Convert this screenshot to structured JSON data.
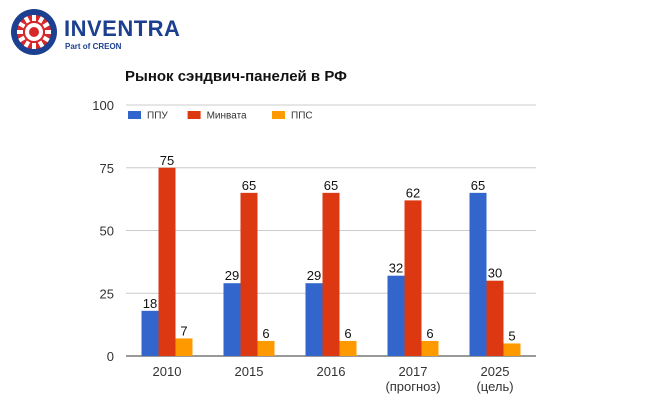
{
  "brand": {
    "name": "INVENTRA",
    "sub_prefix": "Part of ",
    "sub_strong": "CREON",
    "colors": {
      "navy": "#1d3f8f",
      "red": "#d7272b"
    }
  },
  "chart_data": {
    "type": "bar",
    "title": "Рынок сэндвич-панелей в РФ",
    "categories": [
      [
        "2010"
      ],
      [
        "2015"
      ],
      [
        "2016"
      ],
      [
        "2017",
        "(прогноз)"
      ],
      [
        "2025",
        "(цель)"
      ]
    ],
    "series": [
      {
        "name": "ППУ",
        "color": "#3366cc",
        "values": [
          18,
          29,
          29,
          32,
          65
        ]
      },
      {
        "name": "Минвата",
        "color": "#dc3912",
        "values": [
          75,
          65,
          65,
          62,
          30
        ]
      },
      {
        "name": "ППС",
        "color": "#ff9900",
        "values": [
          7,
          6,
          6,
          6,
          5
        ]
      }
    ],
    "yticks": [
      0,
      25,
      50,
      75,
      100
    ],
    "ylim": [
      0,
      100
    ],
    "grid": true,
    "legend": "top-left",
    "xlabel": "",
    "ylabel": ""
  }
}
